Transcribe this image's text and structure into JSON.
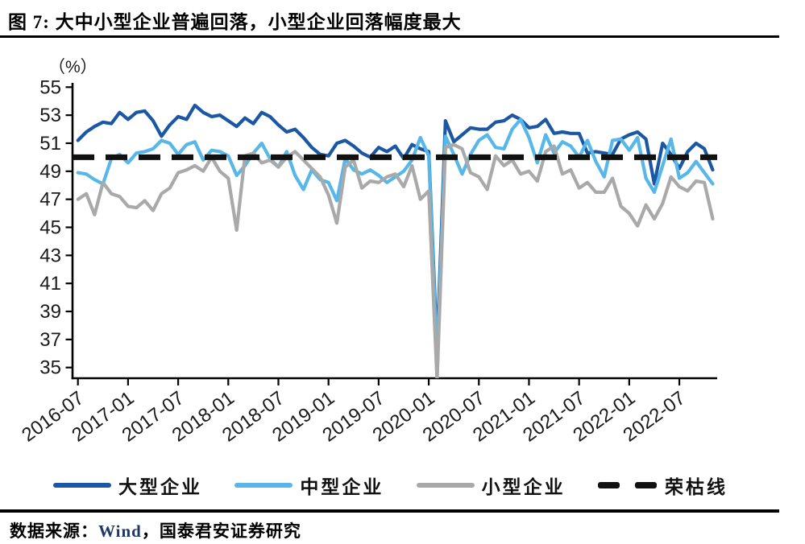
{
  "title": "图 7: 大中小型企业普遍回落，小型企业回落幅度最大",
  "unit_label": "（%）",
  "legend": [
    {
      "label": "大型企业",
      "color": "#1B57A3",
      "style": "solid"
    },
    {
      "label": "中型企业",
      "color": "#57B7E9",
      "style": "solid"
    },
    {
      "label": "小型企业",
      "color": "#A9A9A9",
      "style": "solid"
    },
    {
      "label": "荣枯线",
      "color": "#111111",
      "style": "dashed"
    }
  ],
  "source": {
    "prefix": "数据来源：",
    "vendor": "Wind",
    "suffix": "，国泰君安证券研究"
  },
  "chart_data": {
    "type": "line",
    "title": "图 7: 大中小型企业普遍回落，小型企业回落幅度最大",
    "ylabel": "（%）",
    "ylim": [
      35,
      55
    ],
    "y_ticks": [
      35,
      37,
      39,
      41,
      43,
      45,
      47,
      49,
      51,
      53,
      55
    ],
    "x_start": "2016-07",
    "x_end": "2022-11",
    "months_per_point": 1,
    "x_tick_labels": [
      "2016-07",
      "2017-01",
      "2017-07",
      "2018-01",
      "2018-07",
      "2019-01",
      "2019-07",
      "2020-01",
      "2020-07",
      "2021-01",
      "2021-07",
      "2022-01",
      "2022-07"
    ],
    "x_tick_every_n_points": 6,
    "grid": false,
    "legend_position": "bottom",
    "threshold": {
      "name": "荣枯线",
      "value": 50,
      "color": "#111111",
      "style": "dashed"
    },
    "series": [
      {
        "name": "大型企业",
        "color": "#1B57A3",
        "values": [
          51.2,
          51.8,
          52.2,
          52.5,
          52.4,
          53.2,
          52.7,
          53.2,
          53.3,
          52.6,
          51.5,
          52.3,
          52.9,
          52.7,
          53.7,
          53.2,
          52.9,
          53.0,
          52.6,
          52.2,
          52.8,
          52.4,
          53.2,
          52.9,
          52.3,
          51.8,
          52.0,
          51.4,
          50.7,
          50.2,
          50.1,
          51.0,
          51.2,
          50.8,
          50.3,
          50.0,
          50.7,
          50.4,
          50.8,
          49.9,
          50.9,
          50.6,
          50.4,
          36.3,
          52.6,
          51.1,
          51.6,
          52.1,
          52.0,
          52.0,
          52.5,
          52.6,
          53.0,
          52.7,
          52.1,
          52.2,
          52.7,
          51.7,
          51.8,
          51.7,
          51.7,
          50.3,
          50.4,
          50.3,
          50.2,
          51.3,
          51.6,
          51.8,
          51.3,
          48.1,
          51.0,
          50.2,
          49.2,
          50.4,
          51.0,
          50.6,
          49.1
        ]
      },
      {
        "name": "中型企业",
        "color": "#57B7E9",
        "values": [
          48.9,
          48.8,
          48.4,
          48.1,
          49.9,
          50.2,
          49.6,
          50.3,
          50.4,
          50.6,
          51.2,
          51.0,
          50.2,
          50.9,
          51.1,
          49.8,
          50.5,
          50.4,
          50.1,
          48.7,
          49.4,
          50.3,
          51.0,
          49.9,
          49.3,
          50.4,
          48.7,
          47.7,
          49.1,
          48.4,
          48.2,
          46.9,
          49.9,
          49.1,
          48.8,
          49.1,
          48.7,
          48.2,
          48.6,
          49.0,
          49.8,
          51.4,
          50.1,
          35.5,
          51.5,
          50.2,
          48.8,
          50.2,
          51.2,
          51.6,
          50.7,
          50.6,
          52.0,
          52.7,
          51.4,
          49.6,
          51.6,
          50.3,
          51.1,
          50.8,
          50.0,
          51.2,
          49.7,
          48.6,
          51.2,
          51.3,
          50.5,
          51.4,
          48.5,
          47.5,
          49.4,
          51.3,
          48.5,
          48.9,
          49.7,
          48.9,
          48.1
        ]
      },
      {
        "name": "小型企业",
        "color": "#A9A9A9",
        "values": [
          47.0,
          47.4,
          45.9,
          48.2,
          47.4,
          47.2,
          46.5,
          46.4,
          46.9,
          46.2,
          47.4,
          47.8,
          48.9,
          49.1,
          49.4,
          49.0,
          50.0,
          49.0,
          48.5,
          44.8,
          50.1,
          50.3,
          49.6,
          49.8,
          49.3,
          50.0,
          50.4,
          49.8,
          49.2,
          48.6,
          47.3,
          45.3,
          49.3,
          49.8,
          47.8,
          48.3,
          48.2,
          48.6,
          48.8,
          47.9,
          49.4,
          47.0,
          47.6,
          34.1,
          50.7,
          50.9,
          50.6,
          48.9,
          48.6,
          47.7,
          50.1,
          49.4,
          49.8,
          48.8,
          49.0,
          48.3,
          50.4,
          50.8,
          48.8,
          49.1,
          47.8,
          48.2,
          47.5,
          47.5,
          48.5,
          46.5,
          46.0,
          45.1,
          46.6,
          45.6,
          46.7,
          48.6,
          47.9,
          47.6,
          48.3,
          48.2,
          45.6
        ]
      }
    ]
  }
}
